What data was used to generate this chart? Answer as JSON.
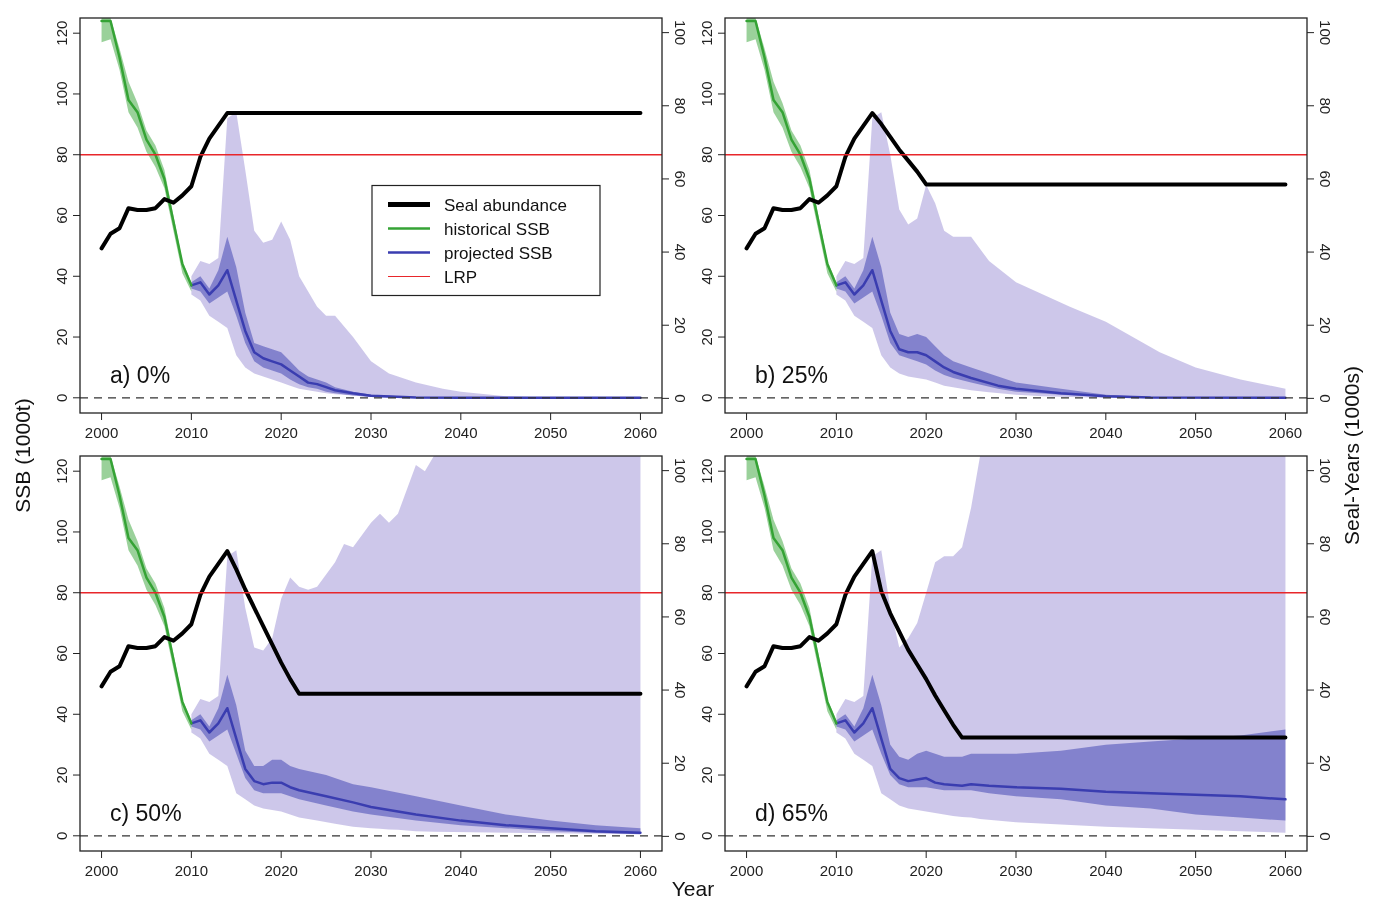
{
  "chart_data": [
    {
      "type": "line",
      "ylabel": "SSB (1000t)",
      "annotations": [
        "a) 0%"
      ],
      "xlim": [
        1997.6,
        2062.4
      ],
      "ylim": [
        -5,
        125
      ],
      "y2lim": [
        -4,
        104
      ],
      "xticks": [
        2000,
        2010,
        2020,
        2030,
        2040,
        2050,
        2060
      ],
      "yticks": [
        0,
        20,
        40,
        60,
        80,
        100,
        120
      ],
      "y2ticks": [
        0,
        20,
        40,
        60,
        80,
        100
      ],
      "legend": "right",
      "ref_lines": [
        {
          "axis": "y",
          "value": 80,
          "label": "LRP",
          "color": "#e8262b"
        },
        {
          "axis": "y",
          "value": 0,
          "color": "#333333",
          "line_style": "dashed"
        }
      ],
      "series": [
        {
          "name": "Seal abundance",
          "color": "#000000",
          "axis": "y2",
          "x": [
            2000,
            2001,
            2002,
            2003,
            2004,
            2005,
            2006,
            2007,
            2008,
            2009,
            2010,
            2011,
            2012,
            2013,
            2014,
            2060
          ],
          "values": [
            41,
            45,
            46.5,
            52,
            51.5,
            51.5,
            52,
            54.5,
            53.5,
            55.5,
            58,
            66,
            71,
            74.5,
            78,
            78
          ]
        },
        {
          "name": "historical SSB",
          "color": "#35a335",
          "x": [
            2000,
            2001,
            2002,
            2003,
            2004,
            2005,
            2006,
            2007,
            2008,
            2009,
            2010
          ],
          "values": [
            124,
            124,
            112,
            98,
            94,
            85,
            80,
            72,
            58,
            44,
            37
          ],
          "lower": [
            117,
            118,
            108,
            94,
            89,
            81,
            76,
            69,
            55,
            41,
            35
          ],
          "upper": [
            125,
            125,
            115,
            104,
            97,
            88,
            83,
            75,
            60,
            45,
            38
          ]
        },
        {
          "name": "projected SSB",
          "color": "#3a3db0",
          "x": [
            2010,
            2011,
            2012,
            2013,
            2014,
            2015,
            2016,
            2017,
            2018,
            2019,
            2020,
            2021,
            2022,
            2023,
            2024,
            2025,
            2026,
            2028,
            2030,
            2035,
            2040,
            2060
          ],
          "values": [
            37,
            38,
            34,
            37,
            42,
            32,
            22,
            15,
            13,
            12,
            11,
            9,
            7,
            5,
            4.5,
            3.5,
            2.5,
            1.5,
            0.7,
            0.1,
            0,
            0
          ],
          "lower": [
            36,
            35,
            31,
            33,
            35,
            27,
            18,
            12,
            10,
            9,
            8,
            6,
            4.5,
            3.5,
            3,
            2,
            1.5,
            0.8,
            0.3,
            0,
            0,
            0
          ],
          "upper": [
            38,
            40,
            36,
            42,
            53,
            43,
            28,
            18,
            17,
            16,
            15,
            12,
            9,
            7,
            6,
            5,
            3.5,
            2,
            1,
            0.3,
            0,
            0
          ]
        },
        {
          "color": "#9b8fd6",
          "x": [
            2010,
            2011,
            2012,
            2013,
            2014,
            2015,
            2016,
            2017,
            2018,
            2019,
            2020,
            2021,
            2022,
            2023,
            2024,
            2025,
            2026,
            2028,
            2030,
            2032,
            2035,
            2038,
            2040,
            2045,
            2050,
            2060
          ],
          "values": [
            null,
            null,
            null,
            null,
            null,
            null,
            null,
            null,
            null,
            null,
            null,
            null,
            null,
            null,
            null,
            null,
            null,
            null,
            null,
            null,
            null,
            null,
            null,
            null,
            null,
            null
          ],
          "lower": [
            34,
            32,
            27,
            25,
            23,
            14,
            10,
            8,
            7,
            6,
            5,
            4,
            3,
            2.5,
            2,
            1.5,
            1.2,
            0.8,
            0.3,
            0.1,
            0,
            0,
            0,
            0,
            0,
            0
          ],
          "upper": [
            40,
            45,
            44,
            46,
            92,
            94,
            75,
            55,
            51,
            52,
            58,
            52,
            40,
            35,
            30,
            27,
            27,
            20,
            12,
            8,
            5,
            3,
            2,
            0.5,
            0,
            0
          ]
        }
      ]
    },
    {
      "type": "line",
      "y2label": "Seal-Years (1000s)",
      "annotations": [
        "b) 25%"
      ],
      "xlim": [
        1997.6,
        2062.4
      ],
      "ylim": [
        -5,
        125
      ],
      "y2lim": [
        -4,
        104
      ],
      "xticks": [
        2000,
        2010,
        2020,
        2030,
        2040,
        2050,
        2060
      ],
      "yticks": [
        0,
        20,
        40,
        60,
        80,
        100,
        120
      ],
      "y2ticks": [
        0,
        20,
        40,
        60,
        80,
        100
      ],
      "ref_lines": [
        {
          "axis": "y",
          "value": 80,
          "color": "#e8262b"
        },
        {
          "axis": "y",
          "value": 0,
          "color": "#333333",
          "line_style": "dashed"
        }
      ],
      "series": [
        {
          "color": "#000000",
          "axis": "y2",
          "x": [
            2000,
            2001,
            2002,
            2003,
            2004,
            2005,
            2006,
            2007,
            2008,
            2009,
            2010,
            2011,
            2012,
            2013,
            2014,
            2015,
            2016,
            2017,
            2018,
            2019,
            2020,
            2060
          ],
          "values": [
            41,
            45,
            46.5,
            52,
            51.5,
            51.5,
            52,
            54.5,
            53.5,
            55.5,
            58,
            66,
            71,
            74.5,
            78,
            75,
            71.5,
            68,
            65,
            62,
            58.5,
            58.5
          ]
        },
        {
          "color": "#35a335",
          "x": [
            2000,
            2001,
            2002,
            2003,
            2004,
            2005,
            2006,
            2007,
            2008,
            2009,
            2010
          ],
          "values": [
            124,
            124,
            112,
            98,
            94,
            85,
            80,
            72,
            58,
            44,
            37
          ],
          "lower": [
            117,
            118,
            108,
            94,
            89,
            81,
            76,
            69,
            55,
            41,
            35
          ],
          "upper": [
            125,
            125,
            115,
            104,
            97,
            88,
            83,
            75,
            60,
            45,
            38
          ]
        },
        {
          "color": "#3a3db0",
          "x": [
            2010,
            2011,
            2012,
            2013,
            2014,
            2015,
            2016,
            2017,
            2018,
            2019,
            2020,
            2021,
            2022,
            2023,
            2025,
            2028,
            2030,
            2035,
            2040,
            2045,
            2060
          ],
          "values": [
            37,
            38,
            34,
            37,
            42,
            32,
            22,
            16,
            15,
            15,
            14,
            12,
            10,
            8.5,
            6.5,
            4,
            3,
            1.5,
            0.5,
            0.1,
            0
          ],
          "lower": [
            36,
            35,
            31,
            33,
            35,
            27,
            18,
            14,
            13,
            12,
            11,
            9,
            7.5,
            6.5,
            5,
            3,
            2,
            1,
            0.3,
            0,
            0
          ],
          "upper": [
            38,
            40,
            36,
            42,
            53,
            43,
            28,
            21,
            20,
            21,
            20,
            17,
            14,
            12,
            10,
            7,
            5,
            3,
            1,
            0.3,
            0
          ]
        },
        {
          "color": "#9b8fd6",
          "x": [
            2010,
            2011,
            2012,
            2013,
            2014,
            2015,
            2016,
            2017,
            2018,
            2019,
            2020,
            2021,
            2022,
            2023,
            2025,
            2027,
            2030,
            2033,
            2036,
            2040,
            2043,
            2046,
            2050,
            2055,
            2060
          ],
          "values": [
            null,
            null,
            null,
            null,
            null,
            null,
            null,
            null,
            null,
            null,
            null,
            null,
            null,
            null,
            null,
            null,
            null,
            null,
            null,
            null,
            null,
            null,
            null,
            null,
            null
          ],
          "lower": [
            34,
            32,
            27,
            25,
            23,
            14,
            10,
            8,
            7,
            6.5,
            6,
            5,
            4,
            3.5,
            2.5,
            1.8,
            1,
            0.5,
            0.3,
            0,
            0,
            0,
            0,
            0,
            0
          ],
          "upper": [
            40,
            45,
            44,
            46,
            92,
            94,
            80,
            62,
            57,
            59,
            70,
            64,
            55,
            53,
            53,
            45,
            38,
            34,
            30,
            25,
            20,
            15,
            10,
            6,
            3
          ]
        }
      ]
    },
    {
      "type": "line",
      "xlabel": "Year",
      "annotations": [
        "c) 50%"
      ],
      "xlim": [
        1997.6,
        2062.4
      ],
      "ylim": [
        -5,
        125
      ],
      "y2lim": [
        -4,
        104
      ],
      "xticks": [
        2000,
        2010,
        2020,
        2030,
        2040,
        2050,
        2060
      ],
      "yticks": [
        0,
        20,
        40,
        60,
        80,
        100,
        120
      ],
      "y2ticks": [
        0,
        20,
        40,
        60,
        80,
        100
      ],
      "ref_lines": [
        {
          "axis": "y",
          "value": 80,
          "color": "#e8262b"
        },
        {
          "axis": "y",
          "value": 0,
          "color": "#333333",
          "line_style": "dashed"
        }
      ],
      "series": [
        {
          "color": "#000000",
          "axis": "y2",
          "x": [
            2000,
            2001,
            2002,
            2003,
            2004,
            2005,
            2006,
            2007,
            2008,
            2009,
            2010,
            2011,
            2012,
            2013,
            2014,
            2015,
            2016,
            2017,
            2018,
            2019,
            2020,
            2021,
            2022,
            2060
          ],
          "values": [
            41,
            45,
            46.5,
            52,
            51.5,
            51.5,
            52,
            54.5,
            53.5,
            55.5,
            58,
            66,
            71,
            74.5,
            78,
            73,
            67.5,
            62.5,
            57.5,
            52.5,
            47.5,
            43,
            39,
            39
          ]
        },
        {
          "color": "#35a335",
          "x": [
            2000,
            2001,
            2002,
            2003,
            2004,
            2005,
            2006,
            2007,
            2008,
            2009,
            2010
          ],
          "values": [
            124,
            124,
            112,
            98,
            94,
            85,
            80,
            72,
            58,
            44,
            37
          ],
          "lower": [
            117,
            118,
            108,
            94,
            89,
            81,
            76,
            69,
            55,
            41,
            35
          ],
          "upper": [
            125,
            125,
            115,
            104,
            97,
            88,
            83,
            75,
            60,
            45,
            38
          ]
        },
        {
          "color": "#3a3db0",
          "x": [
            2010,
            2011,
            2012,
            2013,
            2014,
            2015,
            2016,
            2017,
            2018,
            2019,
            2020,
            2021,
            2022,
            2025,
            2028,
            2030,
            2035,
            2040,
            2045,
            2050,
            2055,
            2060
          ],
          "values": [
            37,
            38,
            34,
            37,
            42,
            32,
            22,
            18,
            17,
            17.5,
            17.5,
            16,
            15,
            13,
            11,
            9.5,
            7,
            5,
            3.5,
            2.5,
            1.5,
            1
          ],
          "lower": [
            36,
            35,
            31,
            33,
            35,
            27,
            19,
            15,
            14,
            14,
            14,
            13,
            12,
            10,
            8,
            7,
            5,
            3.5,
            2.5,
            1.5,
            1,
            0.5
          ],
          "upper": [
            38,
            40,
            36,
            42,
            53,
            43,
            28,
            23,
            23,
            25,
            25,
            23,
            22,
            20,
            17,
            16,
            13,
            10,
            7,
            5,
            3.5,
            2.5
          ]
        },
        {
          "color": "#9b8fd6",
          "x": [
            2010,
            2011,
            2012,
            2013,
            2014,
            2015,
            2016,
            2017,
            2018,
            2019,
            2020,
            2021,
            2022,
            2023,
            2024,
            2026,
            2027,
            2028,
            2030,
            2031,
            2032,
            2033,
            2035,
            2036,
            2037,
            2060
          ],
          "values": [
            null,
            null,
            null,
            null,
            null,
            null,
            null,
            null,
            null,
            null,
            null,
            null,
            null,
            null,
            null,
            null,
            null,
            null,
            null,
            null,
            null,
            null,
            null,
            null,
            null,
            null
          ],
          "lower": [
            34,
            32,
            27,
            25,
            23,
            14,
            12,
            10,
            9,
            8.5,
            8,
            7,
            6,
            5.5,
            5,
            4,
            3.5,
            3,
            2.5,
            2.3,
            2.1,
            2,
            1.5,
            1.4,
            1.3,
            0.5
          ],
          "upper": [
            40,
            45,
            44,
            46,
            92,
            94,
            75,
            62,
            61,
            65,
            78,
            85,
            82,
            81,
            82,
            90,
            96,
            95,
            103,
            106,
            103,
            106,
            122,
            120,
            125,
            125
          ]
        }
      ]
    },
    {
      "type": "line",
      "annotations": [
        "d) 65%"
      ],
      "xlim": [
        1997.6,
        2062.4
      ],
      "ylim": [
        -5,
        125
      ],
      "y2lim": [
        -4,
        104
      ],
      "xticks": [
        2000,
        2010,
        2020,
        2030,
        2040,
        2050,
        2060
      ],
      "yticks": [
        0,
        20,
        40,
        60,
        80,
        100,
        120
      ],
      "y2ticks": [
        0,
        20,
        40,
        60,
        80,
        100
      ],
      "ref_lines": [
        {
          "axis": "y",
          "value": 80,
          "color": "#e8262b"
        },
        {
          "axis": "y",
          "value": 0,
          "color": "#333333",
          "line_style": "dashed"
        }
      ],
      "series": [
        {
          "color": "#000000",
          "axis": "y2",
          "x": [
            2000,
            2001,
            2002,
            2003,
            2004,
            2005,
            2006,
            2007,
            2008,
            2009,
            2010,
            2011,
            2012,
            2013,
            2014,
            2015,
            2016,
            2017,
            2018,
            2019,
            2020,
            2021,
            2022,
            2023,
            2024,
            2060
          ],
          "values": [
            41,
            45,
            46.5,
            52,
            51.5,
            51.5,
            52,
            54.5,
            53.5,
            55.5,
            58,
            66,
            71,
            74.5,
            78,
            67,
            61,
            56,
            51,
            47,
            43,
            38.5,
            34.5,
            30.5,
            27,
            27
          ]
        },
        {
          "color": "#35a335",
          "x": [
            2000,
            2001,
            2002,
            2003,
            2004,
            2005,
            2006,
            2007,
            2008,
            2009,
            2010
          ],
          "values": [
            124,
            124,
            112,
            98,
            94,
            85,
            80,
            72,
            58,
            44,
            37
          ],
          "lower": [
            117,
            118,
            108,
            94,
            89,
            81,
            76,
            69,
            55,
            41,
            35
          ],
          "upper": [
            125,
            125,
            115,
            104,
            97,
            88,
            83,
            75,
            60,
            45,
            38
          ]
        },
        {
          "color": "#3a3db0",
          "x": [
            2010,
            2011,
            2012,
            2013,
            2014,
            2015,
            2016,
            2017,
            2018,
            2019,
            2020,
            2021,
            2022,
            2024,
            2025,
            2027,
            2030,
            2035,
            2040,
            2045,
            2050,
            2055,
            2060
          ],
          "values": [
            37,
            38,
            34,
            37,
            42,
            32,
            22,
            19,
            18,
            18.5,
            19,
            17.5,
            17,
            16.5,
            17,
            16.5,
            16,
            15.5,
            14.5,
            14,
            13.5,
            13,
            12
          ],
          "lower": [
            36,
            35,
            31,
            33,
            35,
            27,
            20,
            17,
            16,
            16,
            16,
            15.5,
            15,
            15,
            15,
            14,
            13,
            12,
            10,
            9,
            7,
            6,
            5
          ],
          "upper": [
            38,
            40,
            36,
            42,
            53,
            43,
            30,
            26,
            25,
            27,
            28,
            27,
            26,
            26,
            27,
            27,
            27,
            28,
            30,
            31,
            32,
            33,
            35
          ]
        },
        {
          "color": "#9b8fd6",
          "x": [
            2010,
            2011,
            2012,
            2013,
            2014,
            2015,
            2016,
            2017,
            2018,
            2019,
            2020,
            2021,
            2022,
            2023,
            2024,
            2025,
            2026,
            2030,
            2040,
            2050,
            2060
          ],
          "values": [
            null,
            null,
            null,
            null,
            null,
            null,
            null,
            null,
            null,
            null,
            null,
            null,
            null,
            null,
            null,
            null,
            null,
            null,
            null,
            null,
            null
          ],
          "lower": [
            34,
            32,
            27,
            25,
            23,
            14,
            12,
            10,
            9,
            8.5,
            8,
            7.5,
            7,
            6.5,
            6.2,
            6,
            5.5,
            4.5,
            3,
            2,
            1
          ],
          "upper": [
            40,
            45,
            44,
            46,
            92,
            94,
            75,
            62,
            65,
            70,
            80,
            90,
            92,
            92,
            95,
            108,
            125,
            125,
            125,
            125,
            125
          ]
        }
      ]
    }
  ]
}
